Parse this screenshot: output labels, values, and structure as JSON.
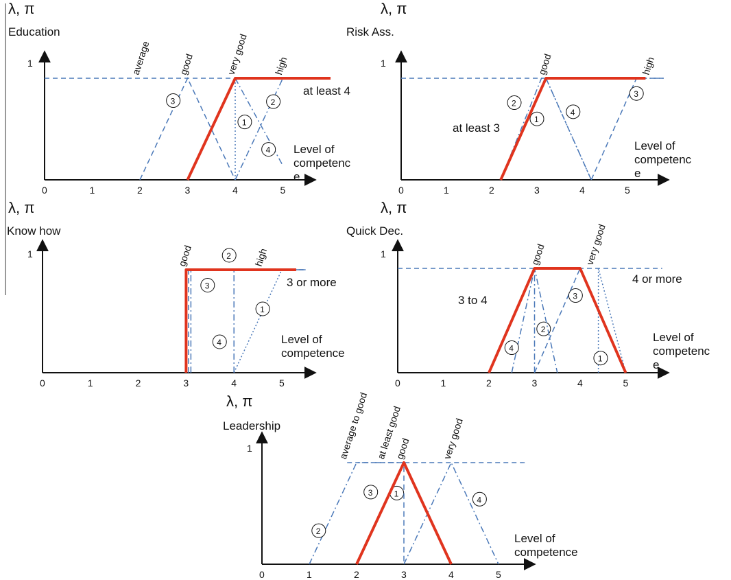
{
  "colors": {
    "requirement": "#e0341e",
    "candidate": "#4a78b8",
    "axis": "#111111",
    "separator": "#333333"
  },
  "chart_data": [
    {
      "type": "line",
      "title": "Education",
      "ylabel": "λ, π",
      "xlabel": "Level of competenc e",
      "xlim": [
        0,
        5.8
      ],
      "ylim": [
        0,
        1
      ],
      "x_ticks": [
        0,
        1,
        2,
        3,
        4,
        5
      ],
      "y_ticks": [
        1
      ],
      "terms": [
        {
          "label": "average",
          "x": 2.0
        },
        {
          "label": "good",
          "x": 3.0
        },
        {
          "label": "very good",
          "x": 4.0
        },
        {
          "label": "high",
          "x": 5.0
        }
      ],
      "requirement": {
        "label": "at least 4",
        "points": [
          [
            3.0,
            0
          ],
          [
            4.0,
            1
          ],
          [
            6.0,
            1
          ]
        ]
      },
      "candidates": [
        {
          "id": "1",
          "label_pos": [
            4.2,
            0.57
          ],
          "points": [
            [
              4.0,
              0
            ],
            [
              4.0,
              1
            ],
            [
              5.5,
              1
            ]
          ],
          "style": "dotted"
        },
        {
          "id": "2",
          "label_pos": [
            4.8,
            0.77
          ],
          "points": [
            [
              4.0,
              0
            ],
            [
              5.0,
              1
            ],
            [
              5.5,
              1
            ]
          ],
          "style": "dashdot"
        },
        {
          "id": "3",
          "label_pos": [
            2.7,
            0.78
          ],
          "points": [
            [
              2.0,
              0
            ],
            [
              3.0,
              1
            ],
            [
              4.0,
              0
            ]
          ],
          "style": "dashed"
        },
        {
          "id": "4",
          "label_pos": [
            4.7,
            0.3
          ],
          "points": [
            [
              4.0,
              1
            ],
            [
              5.0,
              0.14
            ]
          ],
          "style": "dashdot"
        }
      ],
      "reference_line": {
        "y": 1,
        "from": 0,
        "to": 4.0
      }
    },
    {
      "type": "line",
      "title": "Risk Ass.",
      "ylabel": "λ, π",
      "xlabel": "Level of competenc e",
      "xlim": [
        0,
        5.8
      ],
      "ylim": [
        0,
        1
      ],
      "x_ticks": [
        0,
        1,
        2,
        3,
        4,
        5
      ],
      "y_ticks": [
        1
      ],
      "terms": [
        {
          "label": "good",
          "x": 3.2
        },
        {
          "label": "high",
          "x": 5.5
        }
      ],
      "requirement": {
        "label": "at least 3",
        "points": [
          [
            2.2,
            0
          ],
          [
            3.2,
            1
          ],
          [
            5.4,
            1
          ]
        ]
      },
      "candidates": [
        {
          "id": "1",
          "label_pos": [
            3.0,
            0.6
          ],
          "points": [
            [
              2.2,
              0
            ],
            [
              3.2,
              1
            ],
            [
              4.2,
              0
            ]
          ],
          "style": "dotted"
        },
        {
          "id": "2",
          "label_pos": [
            2.5,
            0.76
          ],
          "points": [
            [
              2.2,
              0
            ],
            [
              3.1,
              1
            ],
            [
              5.8,
              1
            ]
          ],
          "style": "dashdot"
        },
        {
          "id": "3",
          "label_pos": [
            5.2,
            0.85
          ],
          "points": [
            [
              4.2,
              0
            ],
            [
              5.2,
              1
            ],
            [
              5.8,
              1
            ]
          ],
          "style": "dashed"
        },
        {
          "id": "4",
          "label_pos": [
            3.8,
            0.67
          ],
          "points": [
            [
              3.2,
              1
            ],
            [
              4.2,
              0
            ]
          ],
          "style": "dashdot"
        }
      ],
      "reference_line": {
        "y": 1,
        "from": 0,
        "to": 3.2
      }
    },
    {
      "type": "line",
      "title": "Know how",
      "ylabel": "λ, π",
      "xlabel": "Level of competence",
      "xlim": [
        0,
        5.8
      ],
      "ylim": [
        0,
        1
      ],
      "x_ticks": [
        0,
        1,
        2,
        3,
        4,
        5
      ],
      "y_ticks": [
        1
      ],
      "terms": [
        {
          "label": "good",
          "x": 3.0
        },
        {
          "label": "high",
          "x": 4.6
        }
      ],
      "requirement": {
        "label": "3 or more",
        "points": [
          [
            3.0,
            0
          ],
          [
            3.0,
            1
          ],
          [
            5.3,
            1
          ]
        ]
      },
      "candidates": [
        {
          "id": "1",
          "label_pos": [
            4.6,
            0.62
          ],
          "points": [
            [
              4.0,
              0
            ],
            [
              5.0,
              1
            ],
            [
              5.5,
              1
            ]
          ],
          "style": "dotted"
        },
        {
          "id": "2",
          "label_pos": [
            3.9,
            1.14
          ],
          "points": [
            [
              3.05,
              0
            ],
            [
              3.05,
              1
            ],
            [
              5.5,
              1
            ]
          ],
          "style": "dashed"
        },
        {
          "id": "3",
          "label_pos": [
            3.45,
            0.85
          ],
          "points": [
            [
              3.1,
              0
            ],
            [
              3.1,
              1
            ],
            [
              5.5,
              1
            ]
          ],
          "style": "dashdot"
        },
        {
          "id": "4",
          "label_pos": [
            3.7,
            0.3
          ],
          "points": [
            [
              4.0,
              0
            ],
            [
              4.0,
              1
            ]
          ],
          "style": "dashdot"
        }
      ],
      "reference_line": {
        "y": 1,
        "from": 3.0,
        "to": 3.2
      }
    },
    {
      "type": "line",
      "title": "Quick Dec.",
      "ylabel": "λ, π",
      "xlabel": "Level of competenc e",
      "xlim": [
        0,
        5.8
      ],
      "ylim": [
        0,
        1
      ],
      "x_ticks": [
        0,
        1,
        2,
        3,
        4,
        5
      ],
      "y_ticks": [
        1
      ],
      "terms": [
        {
          "label": "good",
          "x": 3.1
        },
        {
          "label": "very good",
          "x": 4.3
        }
      ],
      "requirement": {
        "label": "3 to 4",
        "points": [
          [
            2.0,
            0
          ],
          [
            3.0,
            1
          ],
          [
            4.0,
            1
          ],
          [
            5.0,
            0
          ]
        ]
      },
      "label_4_or_more": "4 or more",
      "candidates": [
        {
          "id": "1",
          "label_pos": [
            4.45,
            0.14
          ],
          "points": [
            [
              4.4,
              0
            ],
            [
              4.4,
              1
            ],
            [
              5.0,
              0
            ]
          ],
          "style": "dotted"
        },
        {
          "id": "2",
          "label_pos": [
            3.2,
            0.42
          ],
          "points": [
            [
              3.0,
              0
            ],
            [
              4.0,
              1
            ]
          ],
          "style": "dashed"
        },
        {
          "id": "3",
          "label_pos": [
            3.9,
            0.74
          ],
          "points": [
            [
              3.0,
              0
            ],
            [
              3.0,
              1
            ],
            [
              4.0,
              1
            ],
            [
              5.0,
              0
            ]
          ],
          "style": "dashdot"
        },
        {
          "id": "4",
          "label_pos": [
            2.5,
            0.24
          ],
          "points": [
            [
              2.5,
              0
            ],
            [
              3.0,
              1
            ],
            [
              3.5,
              0
            ]
          ],
          "style": "dashdot"
        }
      ],
      "reference_line": {
        "y": 1,
        "from": 0,
        "to": 5.8
      }
    },
    {
      "type": "line",
      "title": "Leadership",
      "ylabel": "λ, π",
      "xlabel": "Level of competence",
      "xlim": [
        0,
        5.8
      ],
      "ylim": [
        0,
        1
      ],
      "x_ticks": [
        0,
        1,
        2,
        3,
        4,
        5
      ],
      "y_ticks": [
        1
      ],
      "terms": [
        {
          "label": "average to good",
          "x": 1.8
        },
        {
          "label": "at least good",
          "x": 2.6
        },
        {
          "label": "good",
          "x": 3.0
        },
        {
          "label": "very good",
          "x": 4.0
        }
      ],
      "requirement": {
        "points": [
          [
            2.0,
            0
          ],
          [
            3.0,
            1
          ],
          [
            4.0,
            0
          ]
        ]
      },
      "candidates": [
        {
          "id": "1",
          "label_pos": [
            2.85,
            0.7
          ],
          "points": [
            [
              2.0,
              0
            ],
            [
              3.0,
              1
            ],
            [
              4.0,
              0
            ]
          ],
          "style": "dotted"
        },
        {
          "id": "2",
          "label_pos": [
            1.2,
            0.33
          ],
          "points": [
            [
              1.0,
              0
            ],
            [
              2.0,
              1
            ],
            [
              3.0,
              1
            ]
          ],
          "style": "dashdot"
        },
        {
          "id": "3",
          "label_pos": [
            2.3,
            0.71
          ],
          "points": [
            [
              2.0,
              0
            ],
            [
              3.0,
              1
            ],
            [
              3.0,
              0
            ]
          ],
          "style": "dashed"
        },
        {
          "id": "4",
          "label_pos": [
            4.6,
            0.64
          ],
          "points": [
            [
              3.0,
              0
            ],
            [
              4.0,
              1
            ],
            [
              5.0,
              0
            ]
          ],
          "style": "dashdot"
        }
      ],
      "reference_line": {
        "y": 1,
        "from": 1.8,
        "to": 5.6
      }
    }
  ]
}
